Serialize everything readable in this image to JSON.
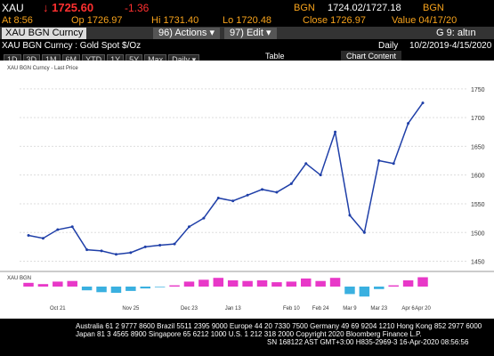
{
  "header": {
    "ticker": "XAU",
    "last": "↓ 1725.60",
    "change": "-1.36",
    "src1": "BGN",
    "bidask": "1724.02/1727.18",
    "src2": "BGN",
    "time": "At 8:56",
    "open": "Op 1726.97",
    "high": "Hi 1731.40",
    "low": "Lo 1720.48",
    "close": "Close 1726.97",
    "valuedate": "Value 04/17/20"
  },
  "toolbar": {
    "security": "XAU BGN Curncy",
    "actions": "96) Actions ▾",
    "edit": "97) Edit ▾",
    "page": "G 9: altın"
  },
  "subheader": {
    "name": "XAU BGN Curncy : Gold Spot $/Oz",
    "period": "Daily",
    "range": "10/2/2019-4/15/2020"
  },
  "buttons": [
    "1D",
    "3D",
    "1M",
    "6M",
    "YTD",
    "1Y",
    "5Y",
    "Max",
    "Daily ▾"
  ],
  "chart_buttons": {
    "table": "Table",
    "content": "Chart Content"
  },
  "chart_data": {
    "type": "line",
    "legend": "XAU BGN Curncy - Last Price",
    "lower_legend": "XAU BGN",
    "categories": [
      null,
      null,
      "Oct 21",
      null,
      null,
      null,
      null,
      "Nov 25",
      null,
      null,
      null,
      "Dec 23",
      null,
      null,
      "Jan 13",
      null,
      null,
      null,
      "Feb 10",
      null,
      "Feb 24",
      null,
      "Mar 9",
      null,
      "Mar 23",
      null,
      "Apr 6",
      "Apr 20"
    ],
    "series": [
      {
        "name": "Last Price",
        "color": "#1f3fa8",
        "values": [
          1495,
          1490,
          1505,
          1510,
          1470,
          1468,
          1462,
          1465,
          1475,
          1478,
          1480,
          1510,
          1525,
          1560,
          1555,
          1565,
          1575,
          1570,
          1585,
          1620,
          1600,
          1675,
          1530,
          1500,
          1625,
          1620,
          1690,
          1725.6
        ]
      }
    ],
    "oscillator": {
      "color_pos": "#e838c8",
      "color_neg": "#3ab0e0",
      "values": [
        6,
        4,
        8,
        9,
        -6,
        -9,
        -10,
        -7,
        -3,
        -1,
        2,
        8,
        11,
        14,
        10,
        9,
        10,
        7,
        8,
        13,
        9,
        14,
        -12,
        -16,
        -4,
        2,
        10,
        15
      ],
      "ylim": [
        -20,
        20
      ]
    },
    "ylim": [
      1440,
      1790
    ],
    "yticks": [
      1450,
      1500,
      1550,
      1600,
      1650,
      1700,
      1750
    ],
    "grid": true
  },
  "footer": [
    "Australia 61 2 9777 8600 Brazil 5511 2395 9000 Europe 44 20 7330 7500 Germany 49 69 9204 1210 Hong Kong 852 2977 6000",
    "Japan 81 3 4565 8900    Singapore 65 6212 1000    U.S. 1 212 318 2000    Copyright 2020 Bloomberg Finance L.P.",
    "SN 168122 AST  GMT+3:00 H835-2969-3 16-Apr-2020 08:56:56"
  ]
}
